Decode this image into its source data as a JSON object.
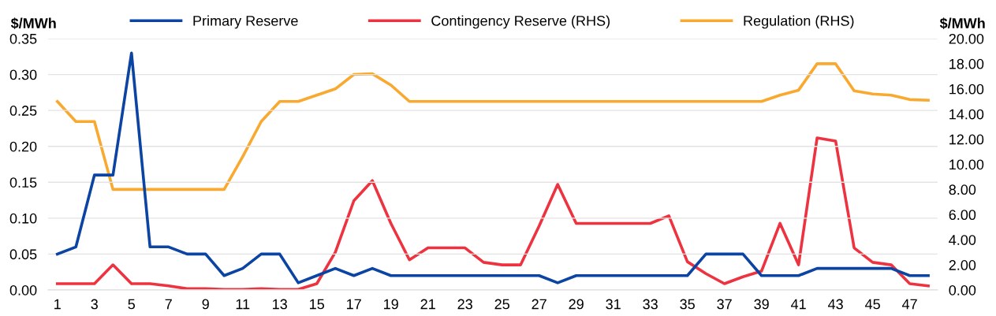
{
  "chart_data": {
    "type": "line",
    "categories": [
      "1",
      null,
      "3",
      null,
      "5",
      null,
      "7",
      null,
      "9",
      null,
      "11",
      null,
      "13",
      null,
      "15",
      null,
      "17",
      null,
      "19",
      null,
      "21",
      null,
      "23",
      null,
      "25",
      null,
      "27",
      null,
      "29",
      null,
      "31",
      null,
      "33",
      null,
      "35",
      null,
      "37",
      null,
      "39",
      null,
      "41",
      null,
      "43",
      null,
      "45",
      null,
      "47",
      null
    ],
    "ylabel": "$/MWh",
    "y2label": "$/MWh",
    "ylim": [
      0,
      0.35
    ],
    "yticks": [
      {
        "value": 0,
        "label": "0.00"
      },
      {
        "value": 0.05,
        "label": "0.05"
      },
      {
        "value": 0.1,
        "label": "0.10"
      },
      {
        "value": 0.15,
        "label": "0.15"
      },
      {
        "value": 0.2,
        "label": "0.20"
      },
      {
        "value": 0.25,
        "label": "0.25"
      },
      {
        "value": 0.3,
        "label": "0.30"
      },
      {
        "value": 0.35,
        "label": "0.35"
      }
    ],
    "y2lim": [
      0,
      20
    ],
    "y2ticks": [
      {
        "value": 0,
        "label": "0.00"
      },
      {
        "value": 2,
        "label": "2.00"
      },
      {
        "value": 4,
        "label": "4.00"
      },
      {
        "value": 6,
        "label": "6.00"
      },
      {
        "value": 8,
        "label": "8.00"
      },
      {
        "value": 10,
        "label": "10.00"
      },
      {
        "value": 12,
        "label": "12.00"
      },
      {
        "value": 14,
        "label": "14.00"
      },
      {
        "value": 16,
        "label": "16.00"
      },
      {
        "value": 18,
        "label": "18.00"
      },
      {
        "value": 20,
        "label": "20.00"
      }
    ],
    "grid": "y",
    "legend": "top",
    "series": [
      {
        "name": "Primary Reserve",
        "color": "#0b44a3",
        "values": [
          0.05,
          0.06,
          0.16,
          0.16,
          0.33,
          0.06,
          0.06,
          0.05,
          0.05,
          0.02,
          0.03,
          0.05,
          0.05,
          0.01,
          0.02,
          0.03,
          0.02,
          0.03,
          0.02,
          0.02,
          0.02,
          0.02,
          0.02,
          0.02,
          0.02,
          0.02,
          0.02,
          0.01,
          0.02,
          0.02,
          0.02,
          0.02,
          0.02,
          0.02,
          0.02,
          0.05,
          0.05,
          0.05,
          0.02,
          0.02,
          0.02,
          0.03,
          0.03,
          0.03,
          0.03,
          0.03,
          0.02,
          0.02
        ]
      },
      {
        "name": "Contingency Reserve (RHS)",
        "color": "#ee3340",
        "axis": "y2",
        "values": [
          0.5,
          0.5,
          0.5,
          2.0,
          0.5,
          0.5,
          0.33,
          0.1,
          0.1,
          0.05,
          0.05,
          0.1,
          0.05,
          0.05,
          0.5,
          3.0,
          7.1,
          8.7,
          5.3,
          2.4,
          3.35,
          3.35,
          3.35,
          2.2,
          2.0,
          2.0,
          5.1,
          8.4,
          5.3,
          5.3,
          5.3,
          5.3,
          5.3,
          5.9,
          2.25,
          1.3,
          0.5,
          1.05,
          1.5,
          5.3,
          2.0,
          12.1,
          11.85,
          3.35,
          2.2,
          2.0,
          0.5,
          0.33
        ]
      },
      {
        "name": "Regulation (RHS)",
        "color": "#f9a92f",
        "axis": "y2",
        "values": [
          15.0,
          13.4,
          13.4,
          8.0,
          8.0,
          8.0,
          8.0,
          8.0,
          8.0,
          8.0,
          10.6,
          13.4,
          15.0,
          15.0,
          15.5,
          16.0,
          17.15,
          17.2,
          16.3,
          15.0,
          15.0,
          15.0,
          15.0,
          15.0,
          15.0,
          15.0,
          15.0,
          15.0,
          15.0,
          15.0,
          15.0,
          15.0,
          15.0,
          15.0,
          15.0,
          15.0,
          15.0,
          15.0,
          15.0,
          15.5,
          15.9,
          18.0,
          18.0,
          15.85,
          15.6,
          15.5,
          15.15,
          15.1
        ]
      }
    ]
  }
}
